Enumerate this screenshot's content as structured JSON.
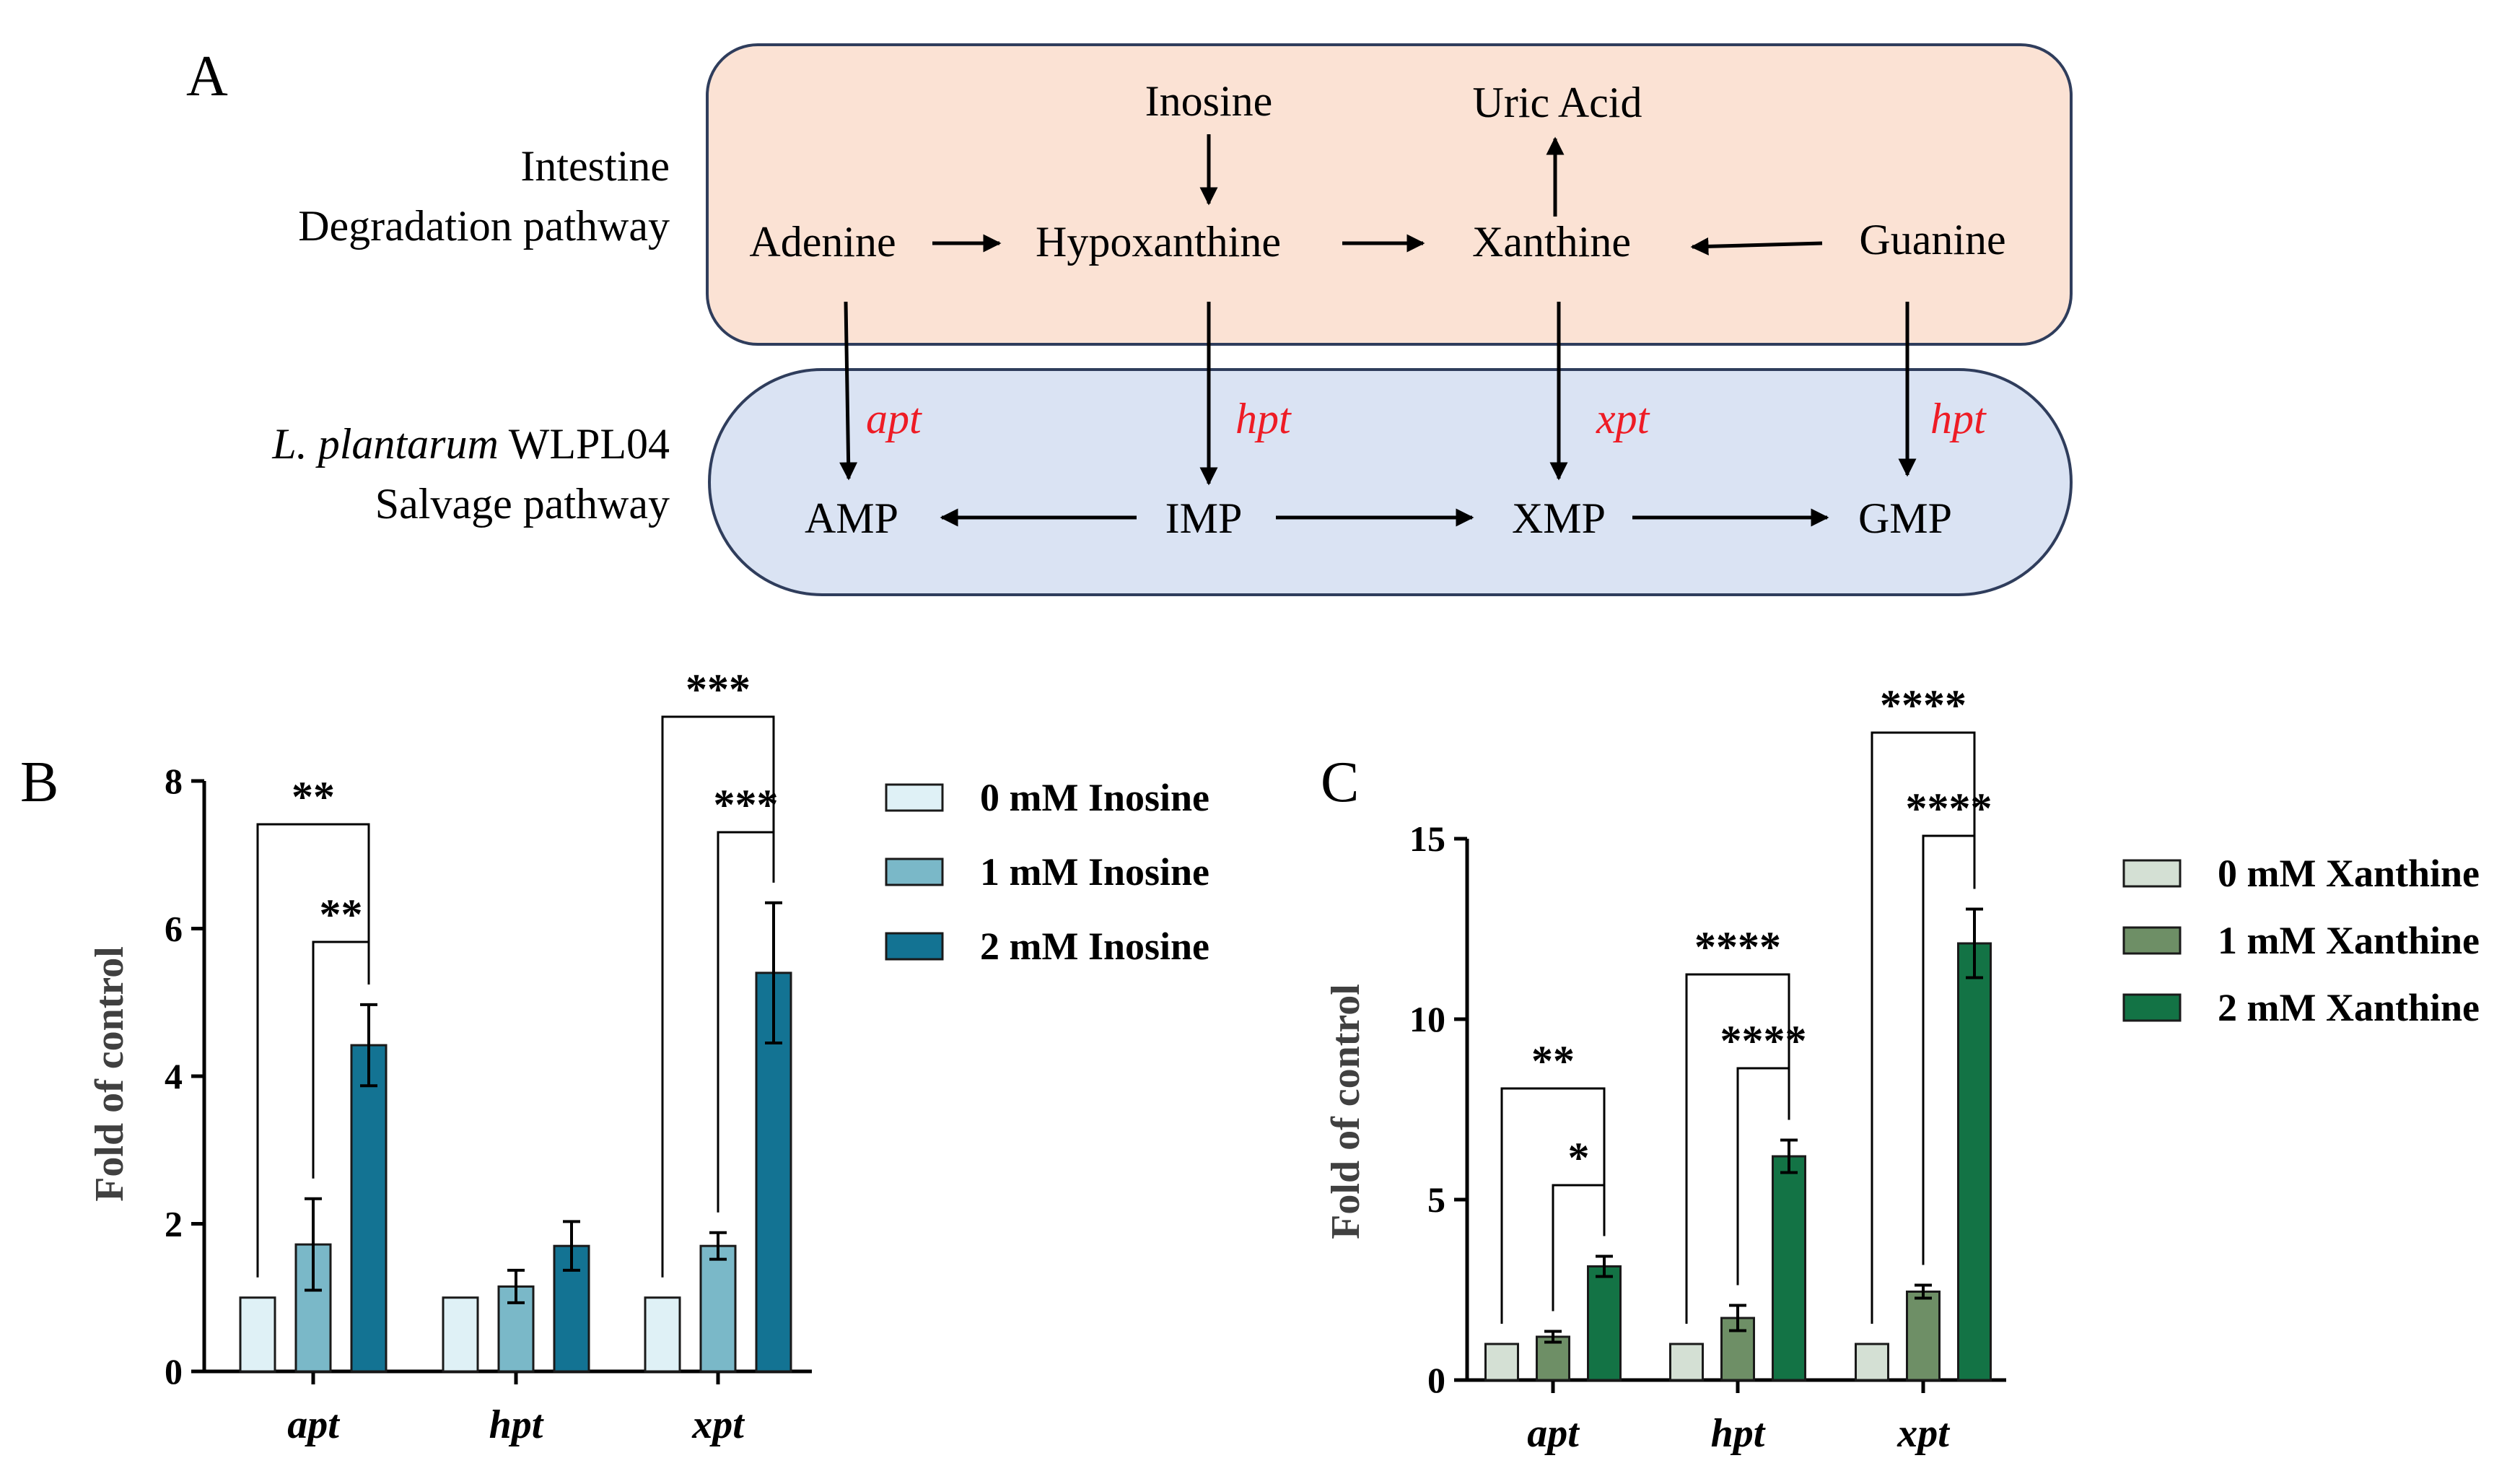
{
  "panel_labels": {
    "a": "A",
    "b": "B",
    "c": "C"
  },
  "pathway": {
    "intestine_label_1": "Intestine",
    "intestine_label_2": "Degradation pathway",
    "salvage_label_1_italic": "L. plantarum",
    "salvage_label_1_rest": " WLPL04",
    "salvage_label_2": "Salvage pathway",
    "nodes": {
      "inosine": "Inosine",
      "uric_acid": "Uric Acid",
      "adenine": "Adenine",
      "hypoxanthine": "Hypoxanthine",
      "xanthine": "Xanthine",
      "guanine": "Guanine",
      "amp": "AMP",
      "imp": "IMP",
      "xmp": "XMP",
      "gmp": "GMP"
    },
    "enzymes": {
      "e1": "apt",
      "e2": "hpt",
      "e3": "xpt",
      "e4": "hpt"
    },
    "colors": {
      "intestine_fill": "#fbe2d4",
      "salvage_fill": "#dae3f3",
      "box_stroke": "#2f3d5c",
      "enzyme": "#ee1c25"
    }
  },
  "chart_data": [
    {
      "id": "B",
      "type": "bar",
      "ylabel": "Fold of control",
      "ylim": [
        0,
        8
      ],
      "yticks": [
        0,
        2,
        4,
        6,
        8
      ],
      "categories": [
        "apt",
        "hpt",
        "xpt"
      ],
      "series": [
        {
          "name": "0 mM Inosine",
          "color": "#dff1f6",
          "values": [
            1,
            1,
            1
          ],
          "errors": [
            0,
            0,
            0
          ]
        },
        {
          "name": "1 mM Inosine",
          "color": "#7ab8c8",
          "values": [
            1.72,
            1.15,
            1.7
          ],
          "errors": [
            0.62,
            0.22,
            0.18
          ]
        },
        {
          "name": "2 mM Inosine",
          "color": "#137393",
          "values": [
            4.42,
            1.7,
            5.4
          ],
          "errors": [
            0.55,
            0.33,
            0.95
          ]
        }
      ],
      "significance": [
        {
          "category": 0,
          "from": 0,
          "to": 2,
          "label": "**"
        },
        {
          "category": 0,
          "from": 1,
          "to": 2,
          "label": "**"
        },
        {
          "category": 2,
          "from": 0,
          "to": 2,
          "label": "***"
        },
        {
          "category": 2,
          "from": 1,
          "to": 2,
          "label": "***"
        }
      ]
    },
    {
      "id": "C",
      "type": "bar",
      "ylabel": "Fold of control",
      "ylim": [
        0,
        15
      ],
      "yticks": [
        0,
        5,
        10,
        15
      ],
      "categories": [
        "apt",
        "hpt",
        "xpt"
      ],
      "series": [
        {
          "name": "0 mM Xanthine",
          "color": "#d4e0d4",
          "values": [
            1,
            1,
            1
          ],
          "errors": [
            0,
            0,
            0
          ]
        },
        {
          "name": "1 mM Xanthine",
          "color": "#6e8f66",
          "values": [
            1.2,
            1.72,
            2.45
          ],
          "errors": [
            0.15,
            0.35,
            0.18
          ]
        },
        {
          "name": "2 mM Xanthine",
          "color": "#137345",
          "values": [
            3.15,
            6.2,
            12.1
          ],
          "errors": [
            0.28,
            0.45,
            0.95
          ]
        }
      ],
      "significance": [
        {
          "category": 0,
          "from": 0,
          "to": 2,
          "label": "**"
        },
        {
          "category": 0,
          "from": 1,
          "to": 2,
          "label": "*"
        },
        {
          "category": 1,
          "from": 0,
          "to": 2,
          "label": "****"
        },
        {
          "category": 1,
          "from": 1,
          "to": 2,
          "label": "****"
        },
        {
          "category": 2,
          "from": 0,
          "to": 2,
          "label": "****"
        },
        {
          "category": 2,
          "from": 1,
          "to": 2,
          "label": "****"
        }
      ]
    }
  ]
}
